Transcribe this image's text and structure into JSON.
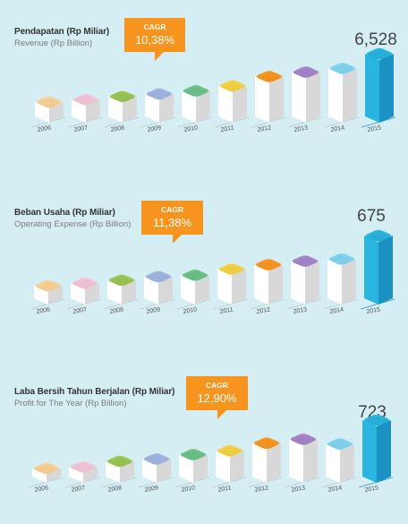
{
  "colors": {
    "background": "#d5eef3",
    "cagr_box": "#f7941d",
    "highlight": "#29b5e0",
    "caps": [
      "#f8cf95",
      "#f3c4d8",
      "#9bc555",
      "#9eb4e0",
      "#6cc088",
      "#f3d144",
      "#f7941d",
      "#a584c8",
      "#7fd3ee",
      "#29b5e0"
    ]
  },
  "panels": [
    {
      "title": "Pendapatan (Rp Miliar)",
      "subtitle": "Revenue (Rp Billion)",
      "cagr_label": "CAGR",
      "cagr_value": "10,38%",
      "highlight_value": "6,528"
    },
    {
      "title": "Beban Usaha (Rp Miliar)",
      "subtitle": "Operating Expense (Rp Billion)",
      "cagr_label": "CAGR",
      "cagr_value": "11,38%",
      "highlight_value": "675"
    },
    {
      "title": "Laba Bersih Tahun Berjalan (Rp Miliar)",
      "subtitle": "Profit for The Year (Rp Billion)",
      "cagr_label": "CAGR",
      "cagr_value": "12,90%",
      "highlight_value": "723"
    }
  ],
  "chart_data": [
    {
      "type": "bar",
      "title": "Pendapatan (Rp Miliar)",
      "subtitle": "Revenue (Rp Billion)",
      "categories": [
        "2006",
        "2007",
        "2008",
        "2009",
        "2010",
        "2011",
        "2012",
        "2013",
        "2014",
        "2015"
      ],
      "values": [
        2650,
        2850,
        3100,
        3300,
        3550,
        3950,
        4700,
        5050,
        5350,
        6528
      ],
      "labeled_value": "6,528",
      "cagr": "10,38%"
    },
    {
      "type": "bar",
      "title": "Beban Usaha (Rp Miliar)",
      "subtitle": "Operating Expense (Rp Billion)",
      "categories": [
        "2006",
        "2007",
        "2008",
        "2009",
        "2010",
        "2011",
        "2012",
        "2013",
        "2014",
        "2015"
      ],
      "values": [
        175,
        200,
        230,
        265,
        280,
        340,
        385,
        420,
        440,
        675
      ],
      "labeled_value": "675",
      "cagr": "11,38%"
    },
    {
      "type": "bar",
      "title": "Laba Bersih Tahun Berjalan (Rp Miliar)",
      "subtitle": "Profit for The Year (Rp Billion)",
      "categories": [
        "2006",
        "2007",
        "2008",
        "2009",
        "2010",
        "2011",
        "2012",
        "2013",
        "2014",
        "2015"
      ],
      "values": [
        110,
        130,
        200,
        230,
        285,
        335,
        430,
        480,
        420,
        723
      ],
      "labeled_value": "723",
      "cagr": "12,90%"
    }
  ]
}
